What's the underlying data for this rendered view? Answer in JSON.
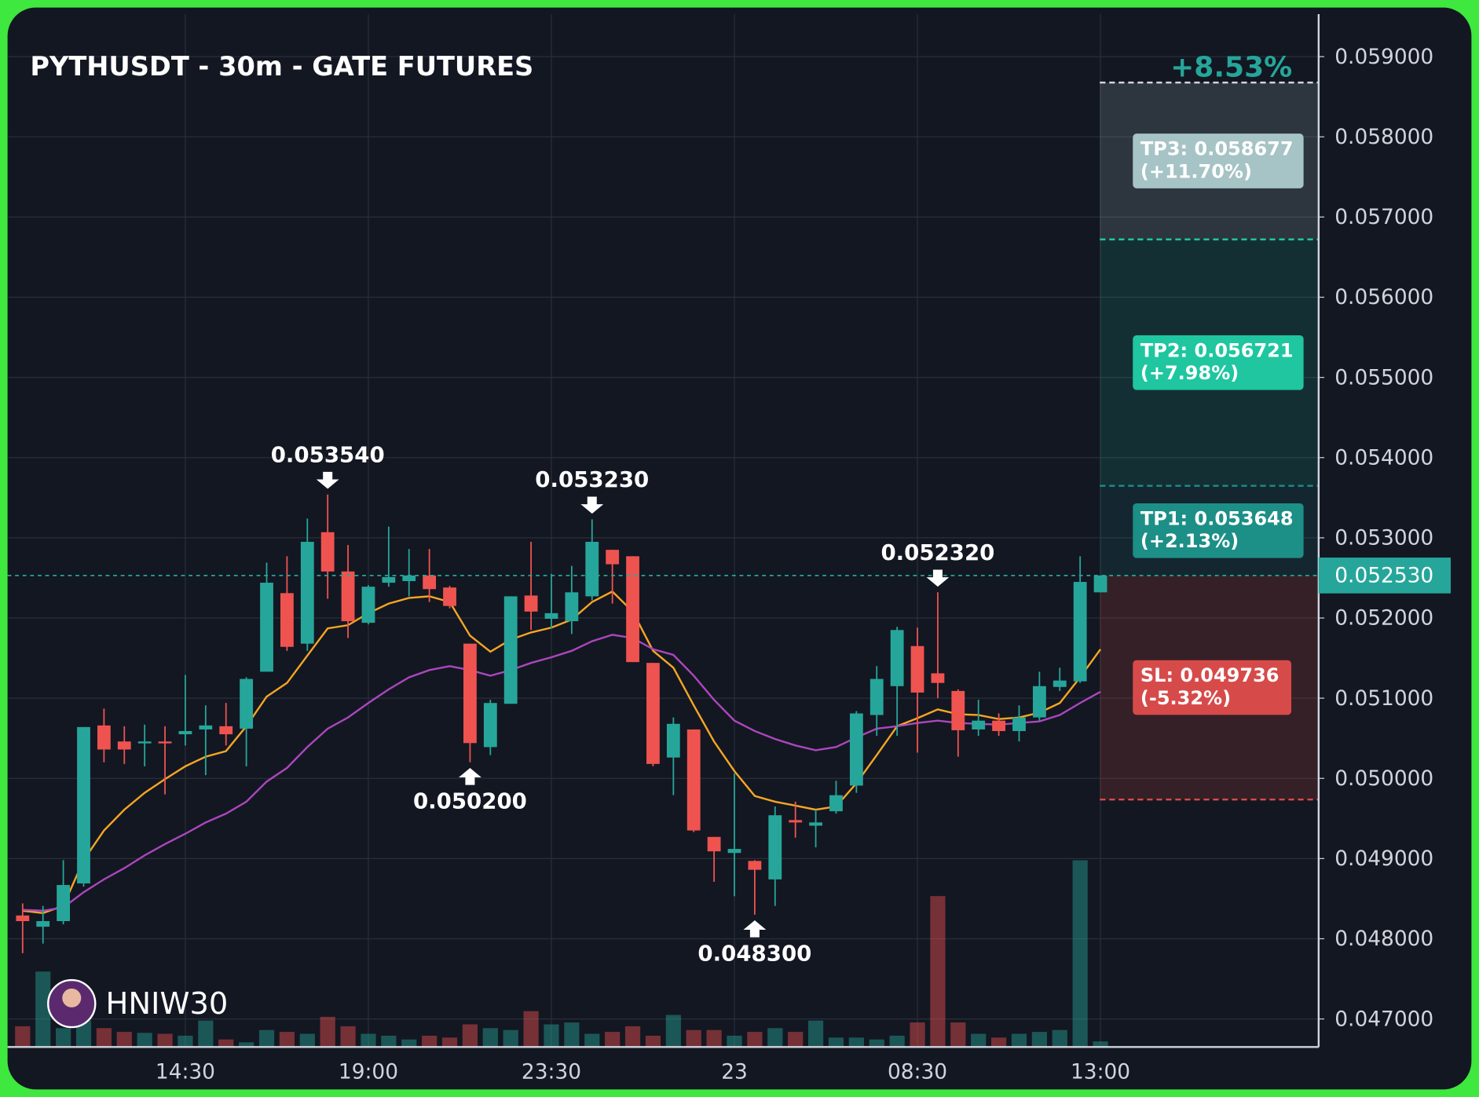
{
  "chart_data": {
    "type": "candlestick",
    "title": "PYTHUSDT - 30m - GATE FUTURES",
    "badge": "+8.53%",
    "watermark": "HNIW30",
    "up_color": "#26a69a",
    "down_color": "#ef5350",
    "categories": [
      null,
      null,
      null,
      null,
      null,
      null,
      null,
      null,
      "14:30",
      null,
      null,
      null,
      null,
      null,
      null,
      null,
      null,
      "19:00",
      null,
      null,
      null,
      null,
      null,
      null,
      null,
      null,
      "23:30",
      null,
      null,
      null,
      null,
      null,
      null,
      null,
      null,
      "23",
      null,
      null,
      null,
      null,
      null,
      null,
      null,
      null,
      "08:30",
      null,
      null,
      null,
      null,
      null,
      null,
      null,
      null,
      "13:00"
    ],
    "open": [
      0.04829,
      0.04815,
      0.04822,
      0.04869,
      0.05066,
      0.05046,
      0.05044,
      0.05046,
      0.05055,
      0.05061,
      0.05065,
      0.05062,
      0.05133,
      0.05231,
      0.05168,
      0.05307,
      0.05258,
      0.05194,
      0.05244,
      0.05246,
      0.05253,
      0.05238,
      0.05168,
      0.05039,
      0.05093,
      0.05228,
      0.05199,
      0.05196,
      0.05227,
      0.05285,
      0.05277,
      0.05144,
      0.05026,
      0.05061,
      0.04927,
      0.04907,
      0.04897,
      0.04874,
      0.04948,
      0.04941,
      0.04959,
      0.04991,
      0.05079,
      0.05115,
      0.05165,
      0.05131,
      0.05109,
      0.05061,
      0.05072,
      0.05059,
      0.05076,
      0.05114,
      0.05121,
      0.05232
    ],
    "high": [
      0.04844,
      0.04841,
      0.04898,
      0.05064,
      0.05087,
      0.05065,
      0.05067,
      0.05065,
      0.05129,
      0.05091,
      0.05094,
      0.05126,
      0.05269,
      0.05277,
      0.05324,
      0.05354,
      0.05291,
      0.05241,
      0.05314,
      0.05286,
      0.05286,
      0.0524,
      0.05168,
      0.05098,
      0.05227,
      0.05295,
      0.05255,
      0.05265,
      0.05323,
      0.05285,
      0.05277,
      0.05144,
      0.05076,
      0.05061,
      0.04927,
      0.05006,
      0.04898,
      0.04965,
      0.04971,
      0.04961,
      0.04997,
      0.05084,
      0.0514,
      0.05189,
      0.05188,
      0.05232,
      0.05111,
      0.05098,
      0.05081,
      0.05091,
      0.05133,
      0.05138,
      0.05277,
      0.05253
    ],
    "low": [
      0.04782,
      0.04794,
      0.04818,
      0.04865,
      0.0502,
      0.05018,
      0.05015,
      0.0498,
      0.05041,
      0.05004,
      0.05041,
      0.05015,
      0.05133,
      0.05159,
      0.05159,
      0.05224,
      0.05175,
      0.05192,
      0.05239,
      0.05227,
      0.0522,
      0.05212,
      0.0502,
      0.05029,
      0.05093,
      0.05185,
      0.05187,
      0.0518,
      0.05222,
      0.05218,
      0.05145,
      0.05015,
      0.04979,
      0.04933,
      0.04871,
      0.04853,
      0.0483,
      0.04841,
      0.04926,
      0.04914,
      0.04956,
      0.04982,
      0.05053,
      0.05053,
      0.05032,
      0.051,
      0.05027,
      0.05053,
      0.05053,
      0.05046,
      0.05072,
      0.05109,
      0.05119,
      0.05232
    ],
    "close": [
      0.04822,
      0.04822,
      0.04867,
      0.05064,
      0.05036,
      0.05036,
      0.05046,
      0.05044,
      0.05059,
      0.05066,
      0.05055,
      0.05124,
      0.05244,
      0.05164,
      0.05295,
      0.05258,
      0.05196,
      0.05239,
      0.05251,
      0.05253,
      0.05236,
      0.05215,
      0.05044,
      0.05094,
      0.05227,
      0.05208,
      0.05206,
      0.05232,
      0.05295,
      0.05267,
      0.05145,
      0.05018,
      0.05068,
      0.04935,
      0.04909,
      0.04912,
      0.04886,
      0.04954,
      0.04945,
      0.04945,
      0.04979,
      0.05081,
      0.05124,
      0.05185,
      0.05107,
      0.05119,
      0.0506,
      0.05072,
      0.05059,
      0.05076,
      0.05115,
      0.05122,
      0.05245,
      0.05253
    ],
    "volume": [
      22,
      80,
      20,
      28,
      20,
      16,
      15,
      14,
      12,
      28,
      8,
      5,
      18,
      16,
      14,
      32,
      22,
      14,
      12,
      8,
      12,
      10,
      24,
      20,
      18,
      38,
      24,
      26,
      14,
      16,
      22,
      12,
      34,
      18,
      18,
      12,
      16,
      20,
      16,
      28,
      10,
      10,
      8,
      12,
      26,
      160,
      26,
      14,
      10,
      14,
      16,
      18,
      198,
      6
    ],
    "series": [
      {
        "color": "#f5a623",
        "values": [
          0.04835,
          0.04832,
          0.04841,
          0.04898,
          0.04935,
          0.04961,
          0.04982,
          0.04999,
          0.05015,
          0.05027,
          0.05034,
          0.05065,
          0.05102,
          0.05119,
          0.05153,
          0.05187,
          0.05191,
          0.05206,
          0.05218,
          0.05225,
          0.05227,
          0.0522,
          0.05178,
          0.05158,
          0.05173,
          0.05182,
          0.05188,
          0.05198,
          0.0522,
          0.05233,
          0.05208,
          0.05159,
          0.05138,
          0.05091,
          0.05046,
          0.05009,
          0.04978,
          0.04971,
          0.04966,
          0.04961,
          0.04965,
          0.04994,
          0.05029,
          0.05065,
          0.05075,
          0.05086,
          0.0508,
          0.05079,
          0.05074,
          0.05076,
          0.05082,
          0.05094,
          0.05126,
          0.05161
        ]
      },
      {
        "color": "#ab47bc",
        "values": [
          0.04836,
          0.04835,
          0.04839,
          0.04858,
          0.04874,
          0.04888,
          0.04904,
          0.04918,
          0.04931,
          0.04945,
          0.04956,
          0.04971,
          0.04996,
          0.05013,
          0.05039,
          0.05062,
          0.05076,
          0.05094,
          0.05111,
          0.05126,
          0.05135,
          0.0514,
          0.05135,
          0.05128,
          0.05135,
          0.05144,
          0.05151,
          0.05159,
          0.05171,
          0.05179,
          0.05175,
          0.05161,
          0.05154,
          0.05128,
          0.05098,
          0.05072,
          0.05059,
          0.05049,
          0.05041,
          0.05035,
          0.05039,
          0.05051,
          0.05062,
          0.05065,
          0.05069,
          0.05072,
          0.05069,
          0.05068,
          0.05067,
          0.05069,
          0.05071,
          0.05079,
          0.05094,
          0.05108
        ]
      }
    ],
    "annotations": [
      {
        "x": 15,
        "value": 0.05354,
        "label": "0.053540",
        "side": "high"
      },
      {
        "x": 22,
        "value": 0.0502,
        "label": "0.050200",
        "side": "low"
      },
      {
        "x": 28,
        "value": 0.05323,
        "label": "0.053230",
        "side": "high"
      },
      {
        "x": 36,
        "value": 0.0483,
        "label": "0.048300",
        "side": "low"
      },
      {
        "x": 45,
        "value": 0.05232,
        "label": "0.052320",
        "side": "high"
      }
    ],
    "last_price": {
      "value": 0.05253,
      "label": "0.052530",
      "color": "#26a69a"
    },
    "targets": [
      {
        "label": "TP3: 0.058677",
        "change": "(+11.70%)",
        "value": 0.058677,
        "color": "#a6c3c5"
      },
      {
        "label": "TP2: 0.056721",
        "change": "(+7.98%)",
        "value": 0.056721,
        "color": "#1fc6a0"
      },
      {
        "label": "TP1: 0.053648",
        "change": "(+2.13%)",
        "value": 0.053648,
        "color": "#1c8f86"
      }
    ],
    "stop": {
      "label": "SL: 0.049736",
      "change": "(-5.32%)",
      "value": 0.049736,
      "color": "#d64b4a"
    },
    "ylim": [
      0.04665,
      0.05953
    ],
    "yticks": [
      {
        "value": 0.047,
        "label": "0.047000"
      },
      {
        "value": 0.048,
        "label": "0.048000"
      },
      {
        "value": 0.049,
        "label": "0.049000"
      },
      {
        "value": 0.05,
        "label": "0.050000"
      },
      {
        "value": 0.051,
        "label": "0.051000"
      },
      {
        "value": 0.052,
        "label": "0.052000"
      },
      {
        "value": 0.053,
        "label": "0.053000"
      },
      {
        "value": 0.054,
        "label": "0.054000"
      },
      {
        "value": 0.055,
        "label": "0.055000"
      },
      {
        "value": 0.056,
        "label": "0.056000"
      },
      {
        "value": 0.057,
        "label": "0.057000"
      },
      {
        "value": 0.058,
        "label": "0.058000"
      },
      {
        "value": 0.059,
        "label": "0.059000"
      }
    ],
    "grid": true
  }
}
